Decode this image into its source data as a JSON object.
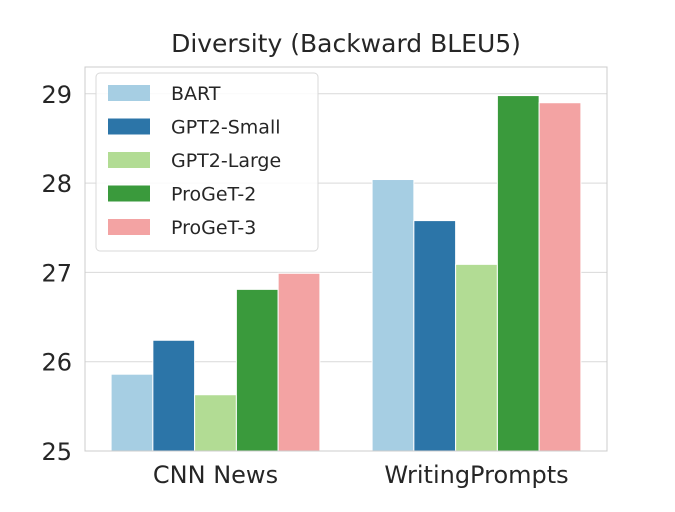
{
  "chart_data": {
    "type": "bar",
    "title": "Diversity (Backward BLEU5)",
    "xlabel": "",
    "ylabel": "",
    "categories": [
      "CNN News",
      "WritingPrompts"
    ],
    "series": [
      {
        "name": "BART",
        "color": "#a6cee3",
        "values": [
          25.86,
          28.04
        ]
      },
      {
        "name": "GPT2-Small",
        "color": "#2c75a8",
        "values": [
          26.24,
          27.58
        ]
      },
      {
        "name": "GPT2-Large",
        "color": "#b2dc94",
        "values": [
          25.63,
          27.09
        ]
      },
      {
        "name": "ProGeT-2",
        "color": "#3a9a3c",
        "values": [
          26.81,
          28.98
        ]
      },
      {
        "name": "ProGeT-3",
        "color": "#f3a3a3",
        "values": [
          26.99,
          28.9
        ]
      }
    ],
    "ylim": [
      25,
      29.3
    ],
    "yticks": [
      25,
      26,
      27,
      28,
      29
    ],
    "grid": true,
    "legend_position": "top-left"
  }
}
